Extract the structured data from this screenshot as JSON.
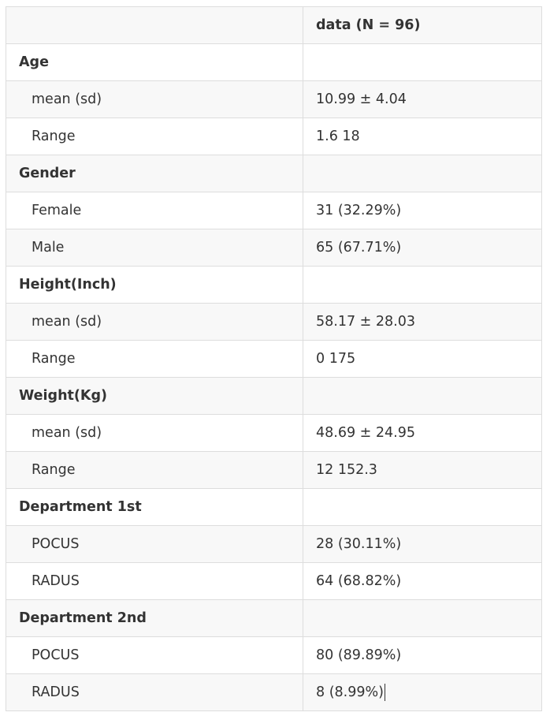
{
  "table": {
    "header": {
      "col1": "",
      "col2": "data (N = 96)"
    },
    "rows": [
      {
        "kind": "group",
        "label": "Age",
        "value": ""
      },
      {
        "kind": "sub",
        "label": "mean (sd)",
        "value": "10.99 ± 4.04"
      },
      {
        "kind": "sub",
        "label": "Range",
        "value": "1.6  18"
      },
      {
        "kind": "group",
        "label": "Gender",
        "value": ""
      },
      {
        "kind": "sub",
        "label": "Female",
        "value": "31 (32.29%)"
      },
      {
        "kind": "sub",
        "label": "Male",
        "value": "65 (67.71%)"
      },
      {
        "kind": "group",
        "label": "Height(Inch)",
        "value": ""
      },
      {
        "kind": "sub",
        "label": "mean (sd)",
        "value": "58.17 ± 28.03"
      },
      {
        "kind": "sub",
        "label": "Range",
        "value": "0  175"
      },
      {
        "kind": "group",
        "label": "Weight(Kg)",
        "value": ""
      },
      {
        "kind": "sub",
        "label": "mean (sd)",
        "value": "48.69 ± 24.95"
      },
      {
        "kind": "sub",
        "label": "Range",
        "value": "12  152.3"
      },
      {
        "kind": "group",
        "label": "Department 1st",
        "value": ""
      },
      {
        "kind": "sub",
        "label": "POCUS",
        "value": "28 (30.11%)"
      },
      {
        "kind": "sub",
        "label": "RADUS",
        "value": "64 (68.82%)"
      },
      {
        "kind": "group",
        "label": "Department 2nd",
        "value": ""
      },
      {
        "kind": "sub",
        "label": "POCUS",
        "value": "80 (89.89%)"
      },
      {
        "kind": "sub",
        "label": "RADUS",
        "value": "8 (8.99%)"
      }
    ]
  },
  "colors": {
    "text": "#333333",
    "border": "#dddddd",
    "stripe": "#f8f8f8",
    "background": "#ffffff"
  }
}
